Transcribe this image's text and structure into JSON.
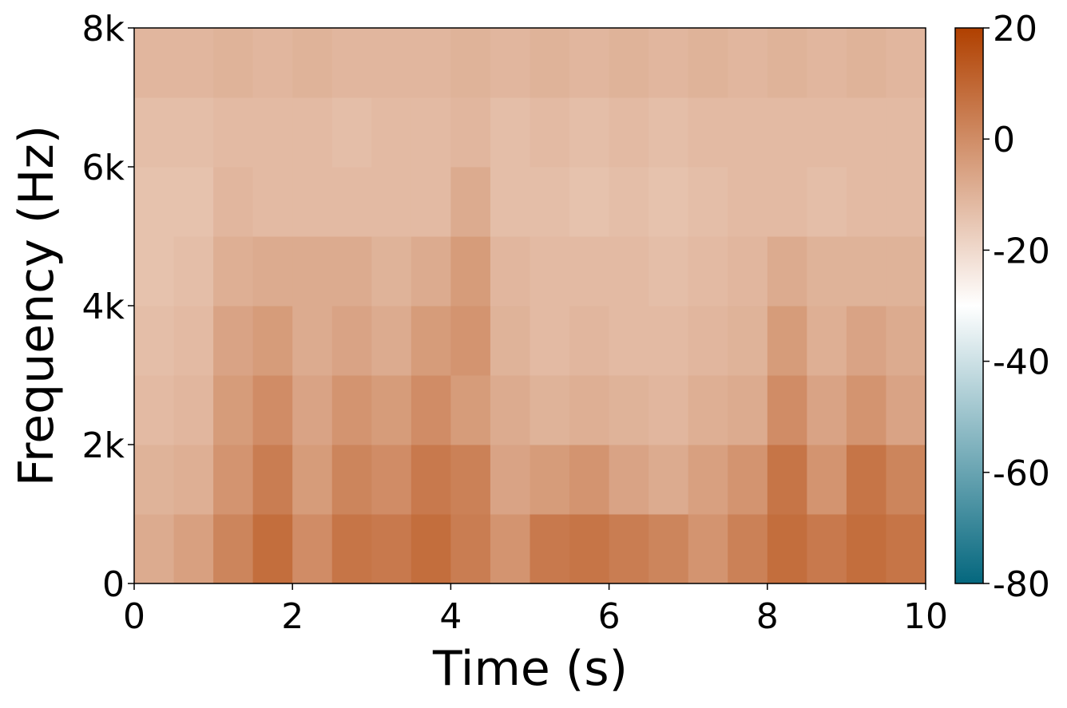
{
  "chart_data": {
    "type": "heatmap",
    "xlabel": "Time (s)",
    "ylabel": "Frequency (Hz)",
    "xlim": [
      0,
      10
    ],
    "xticks": [
      0,
      2,
      4,
      6,
      8,
      10
    ],
    "ylim": [
      0,
      8000
    ],
    "yticks": [
      0,
      {
        "value": 2000,
        "label": "2k"
      },
      {
        "value": 4000,
        "label": "4k"
      },
      {
        "value": 6000,
        "label": "6k"
      },
      {
        "value": 8000,
        "label": "8k"
      }
    ],
    "clim": [
      -80,
      20
    ],
    "cticks": [
      -80,
      -60,
      -40,
      -20,
      0,
      20
    ],
    "colormap": [
      "#04677e",
      "#ffffff",
      "#b04000"
    ],
    "values": [
      [
        -8,
        -5,
        2,
        8,
        0,
        6,
        5,
        8,
        4,
        -2,
        5,
        6,
        4,
        2,
        -2,
        3,
        8,
        5,
        8,
        6
      ],
      [
        -10,
        -9,
        -2,
        4,
        -4,
        2,
        0,
        5,
        3,
        -6,
        -4,
        -2,
        -6,
        -8,
        -5,
        -2,
        6,
        -2,
        6,
        2
      ],
      [
        -12,
        -11,
        -4,
        0,
        -6,
        -2,
        -4,
        0,
        -4,
        -8,
        -10,
        -9,
        -10,
        -11,
        -9,
        -8,
        0,
        -6,
        -2,
        -6
      ],
      [
        -13,
        -12,
        -6,
        -4,
        -8,
        -6,
        -8,
        -4,
        -2,
        -10,
        -12,
        -11,
        -12,
        -12,
        -11,
        -10,
        -4,
        -9,
        -6,
        -8
      ],
      [
        -14,
        -13,
        -9,
        -8,
        -8,
        -8,
        -10,
        -8,
        -4,
        -11,
        -12,
        -12,
        -12,
        -13,
        -12,
        -11,
        -8,
        -10,
        -10,
        -10
      ],
      [
        -14,
        -14,
        -11,
        -12,
        -12,
        -12,
        -12,
        -12,
        -8,
        -13,
        -13,
        -14,
        -13,
        -14,
        -13,
        -12,
        -12,
        -13,
        -12,
        -12
      ],
      [
        -13,
        -13,
        -12,
        -12,
        -12,
        -13,
        -12,
        -12,
        -11,
        -13,
        -12,
        -13,
        -12,
        -13,
        -12,
        -12,
        -12,
        -12,
        -12,
        -12
      ],
      [
        -11,
        -11,
        -10,
        -11,
        -10,
        -11,
        -11,
        -11,
        -10,
        -11,
        -10,
        -11,
        -10,
        -11,
        -10,
        -11,
        -10,
        -11,
        -10,
        -11
      ]
    ]
  }
}
